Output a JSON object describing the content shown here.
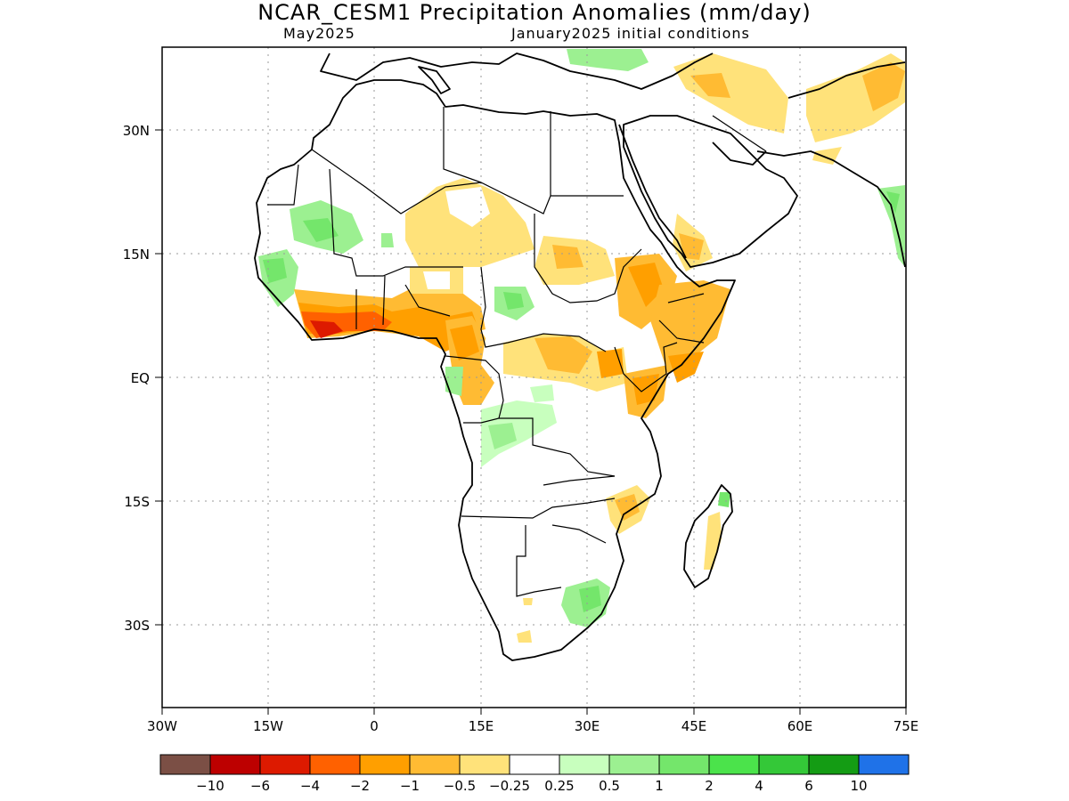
{
  "title": "NCAR_CESM1 Precipitation Anomalies (mm/day)",
  "subtitle_left": "May2025",
  "subtitle_right": "January2025 initial conditions",
  "map": {
    "lon_ticks": [
      "30W",
      "15W",
      "0",
      "15E",
      "30E",
      "45E",
      "60E",
      "75E"
    ],
    "lat_ticks": [
      "30N",
      "15N",
      "EQ",
      "15S",
      "30S"
    ],
    "lon_range": [
      -30,
      75
    ],
    "lat_range": [
      -40,
      40
    ],
    "grid": "dotted"
  },
  "colorbar": {
    "colors": [
      "#7b4f45",
      "#bd0000",
      "#dd1a00",
      "#ff6100",
      "#ff9f00",
      "#ffbb33",
      "#ffe27a",
      "#ffffff",
      "#c8ffbe",
      "#9cf091",
      "#74e66b",
      "#4be34b",
      "#34c838",
      "#149c14",
      "#1f72e8"
    ],
    "labels": [
      "−10",
      "−6",
      "−4",
      "−2",
      "−1",
      "−0.5",
      "−0.25",
      "0.25",
      "0.5",
      "1",
      "2",
      "4",
      "6",
      "10"
    ]
  }
}
